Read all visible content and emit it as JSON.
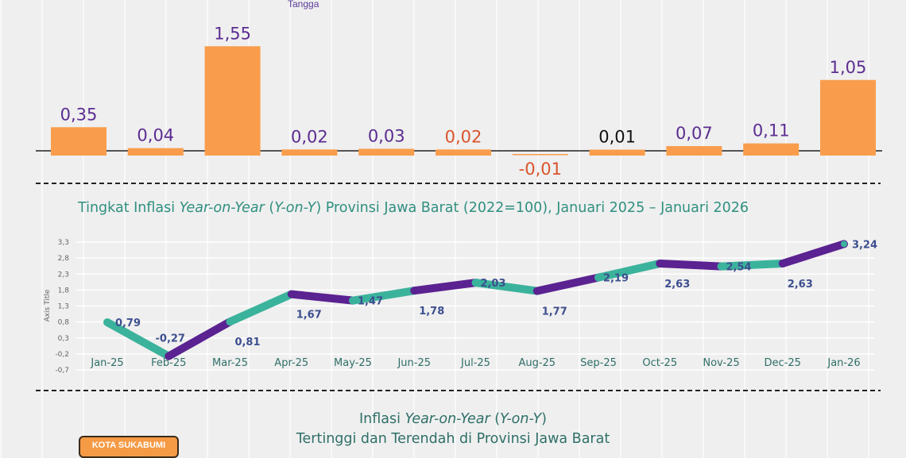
{
  "header_fragment": "Tangga",
  "chart_data": [
    {
      "type": "bar",
      "values": [
        0.35,
        0.04,
        1.55,
        0.02,
        0.03,
        0.02,
        -0.01,
        0.01,
        0.07,
        0.11,
        1.05
      ],
      "labels": [
        "0,35",
        "0,04",
        "1,55",
        "0,02",
        "0,03",
        "0,02",
        "-0,01",
        "0,01",
        "0,07",
        "0,11",
        "1,05"
      ],
      "label_colors": [
        "#5b2d91",
        "#5b2d91",
        "#5b2d91",
        "#5b2d91",
        "#5b2d91",
        "#d9542b",
        "#d9542b",
        "#111111",
        "#5b2d91",
        "#5b2d91",
        "#5b2d91"
      ],
      "bar_color": "#f99d4c"
    },
    {
      "type": "line",
      "title": "Tingkat Inflasi Year-on-Year (Y-on-Y) Provinsi Jawa Barat (2022=100), Januari 2025 – Januari 2026",
      "title_parts": [
        "Tingkat Inflasi ",
        "Year-on-Year",
        " (",
        "Y-on-Y",
        ") Provinsi Jawa Barat (2022=100), Januari 2025 – Januari 2026"
      ],
      "ylabel": "Axis Title",
      "categories": [
        "Jan-25",
        "Feb-25",
        "Mar-25",
        "Apr-25",
        "May-25",
        "Jun-25",
        "Jul-25",
        "Aug-25",
        "Sep-25",
        "Oct-25",
        "Nov-25",
        "Dec-25",
        "Jan-26"
      ],
      "values": [
        0.79,
        -0.27,
        0.81,
        1.67,
        1.47,
        1.78,
        2.03,
        1.77,
        2.19,
        2.63,
        2.54,
        2.63,
        3.24
      ],
      "labels": [
        "0,79",
        "-0,27",
        "0,81",
        "1,67",
        "1,47",
        "1,78",
        "2,03",
        "1,77",
        "2,19",
        "2,63",
        "2,54",
        "2,63",
        "3,24"
      ],
      "yticks": [
        "3,3",
        "2,8",
        "2,3",
        "1,8",
        "1,3",
        "0,8",
        "0,3",
        "-0,2",
        "-0,7"
      ],
      "ylim": [
        -0.7,
        3.3
      ],
      "colors": [
        "#3bb39c",
        "#5b2291"
      ],
      "grid": true
    }
  ],
  "section3": {
    "line1_parts": [
      "Inflasi ",
      "Year-on-Year",
      " (",
      "Y-on-Y",
      ")"
    ],
    "line2": "Tertinggi dan Terendah di Provinsi Jawa Barat"
  },
  "badge": "KOTA SUKABUMI"
}
